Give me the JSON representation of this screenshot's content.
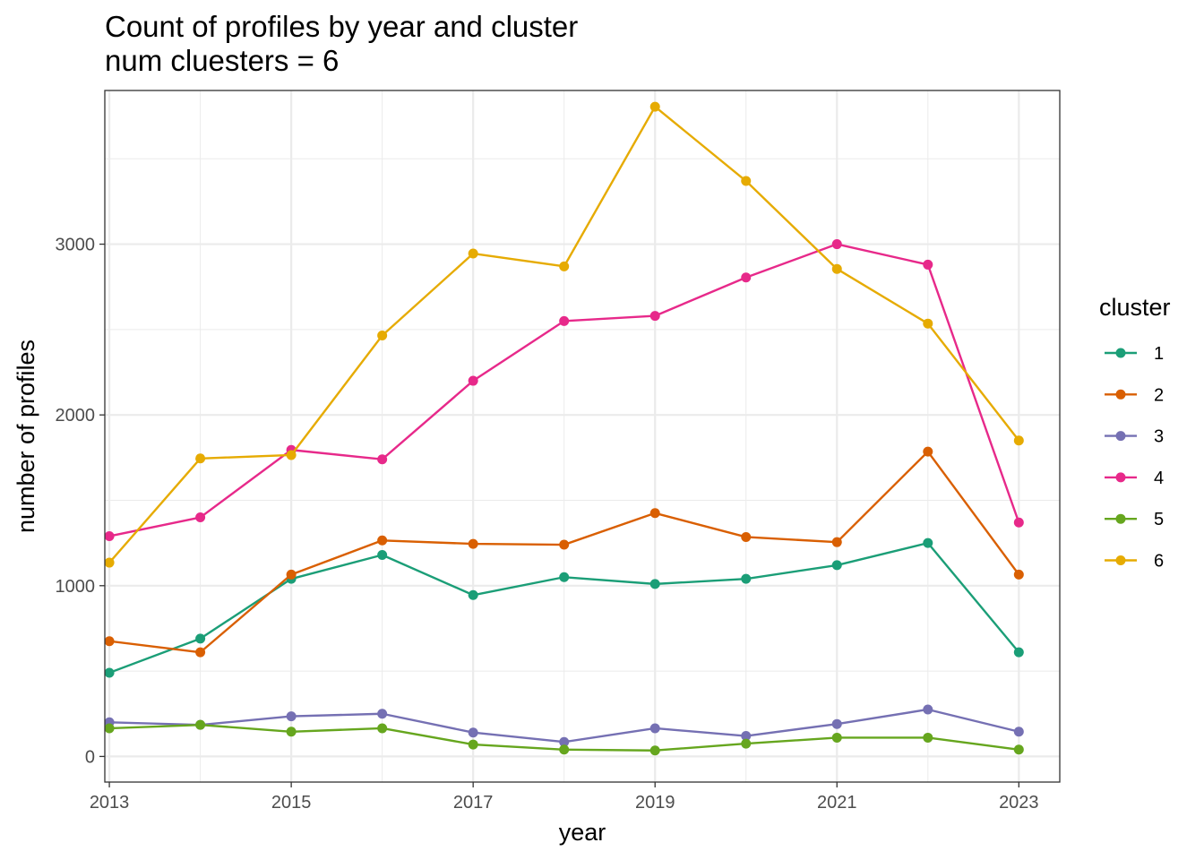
{
  "chart_data": {
    "type": "line",
    "title": "Count of profiles by year and cluster",
    "subtitle": "num cluesters = 6",
    "xlabel": "year",
    "ylabel": "number of profiles",
    "x": [
      2013,
      2014,
      2015,
      2016,
      2017,
      2018,
      2019,
      2020,
      2021,
      2022,
      2023
    ],
    "xlim": [
      2012.95,
      2023.45
    ],
    "ylim": [
      -150,
      3900
    ],
    "x_ticks": [
      2013,
      2015,
      2017,
      2019,
      2021,
      2023
    ],
    "x_tick_labels": [
      "2013",
      "2015",
      "2017",
      "2019",
      "2021",
      "2023"
    ],
    "y_ticks": [
      0,
      1000,
      2000,
      3000
    ],
    "y_tick_labels": [
      "0",
      "1000",
      "2000",
      "3000"
    ],
    "grid": true,
    "legend": {
      "title": "cluster",
      "position": "right"
    },
    "series": [
      {
        "name": "1",
        "color": "#1b9e77",
        "values": [
          490,
          690,
          1040,
          1180,
          945,
          1050,
          1010,
          1040,
          1120,
          1250,
          610
        ]
      },
      {
        "name": "2",
        "color": "#d95f02",
        "values": [
          675,
          610,
          1065,
          1265,
          1245,
          1240,
          1425,
          1285,
          1255,
          1785,
          1065
        ]
      },
      {
        "name": "3",
        "color": "#7570b3",
        "values": [
          200,
          185,
          235,
          250,
          140,
          85,
          165,
          120,
          190,
          275,
          145
        ]
      },
      {
        "name": "4",
        "color": "#e7298a",
        "values": [
          1290,
          1400,
          1795,
          1740,
          2200,
          2550,
          2580,
          2805,
          3000,
          2880,
          1370
        ]
      },
      {
        "name": "5",
        "color": "#66a61e",
        "values": [
          165,
          185,
          145,
          165,
          70,
          40,
          35,
          75,
          110,
          110,
          40
        ]
      },
      {
        "name": "6",
        "color": "#e6ab02",
        "values": [
          1135,
          1745,
          1765,
          2465,
          2945,
          2870,
          3805,
          3370,
          2855,
          2535,
          1850
        ]
      }
    ]
  }
}
